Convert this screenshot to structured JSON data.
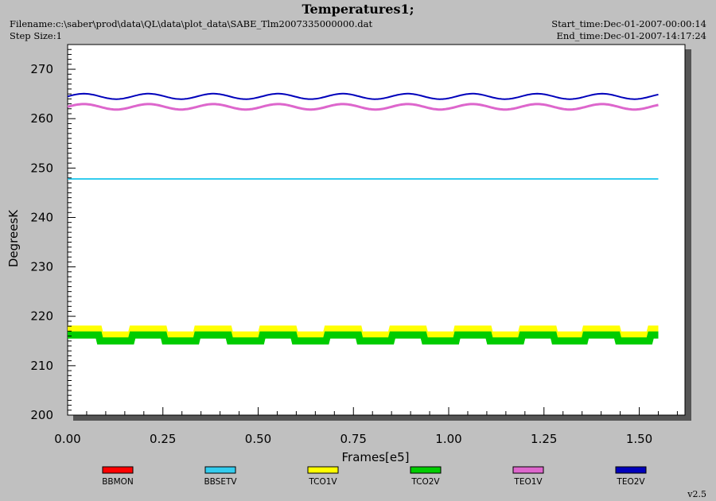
{
  "header": {
    "title": "Temperatures1;",
    "filename": "Filename:c:\\saber\\prod\\data\\QL\\data\\plot_data\\SABE_Tlm2007335000000.dat",
    "step_size": "Step Size:1",
    "start_time": "Start_time:Dec-01-2007-00:00:14",
    "end_time": "End_time:Dec-01-2007-14:17:24"
  },
  "version": "v2.5",
  "chart_data": {
    "type": "line",
    "title": "Temperatures1;",
    "xlabel": "Frames[e5]",
    "ylabel": "DegreesK",
    "xlim": [
      0.0,
      1.62
    ],
    "ylim": [
      200,
      275
    ],
    "x_ticks": [
      "0.00",
      "0.25",
      "0.50",
      "0.75",
      "1.00",
      "1.25",
      "1.50"
    ],
    "y_ticks": [
      "200",
      "210",
      "220",
      "230",
      "240",
      "250",
      "260",
      "270"
    ],
    "x_range": [
      0.0,
      1.55
    ],
    "grid": false,
    "legend_position": "bottom",
    "series": [
      {
        "name": "BBMON",
        "color": "#ff0000",
        "shape": "none",
        "values": []
      },
      {
        "name": "BBSETV",
        "color": "#33ccee",
        "shape": "flat",
        "base": 247.8,
        "amp": 0.0,
        "period": 0.17,
        "width": 0
      },
      {
        "name": "TCO1V",
        "color": "#ffff00",
        "shape": "square",
        "base": 216.8,
        "amp": 1.0,
        "period": 0.17,
        "width": 1.5
      },
      {
        "name": "TCO2V",
        "color": "#00cc00",
        "shape": "square",
        "base": 215.6,
        "amp": 1.0,
        "period": 0.17,
        "width": 1.5
      },
      {
        "name": "TEO1V",
        "color": "#dd66cc",
        "shape": "wave",
        "base": 262.4,
        "amp": 0.55,
        "period": 0.17,
        "width": 0.6
      },
      {
        "name": "TEO2V",
        "color": "#0000bb",
        "shape": "wave",
        "base": 264.5,
        "amp": 0.55,
        "period": 0.17,
        "width": 0
      }
    ]
  }
}
